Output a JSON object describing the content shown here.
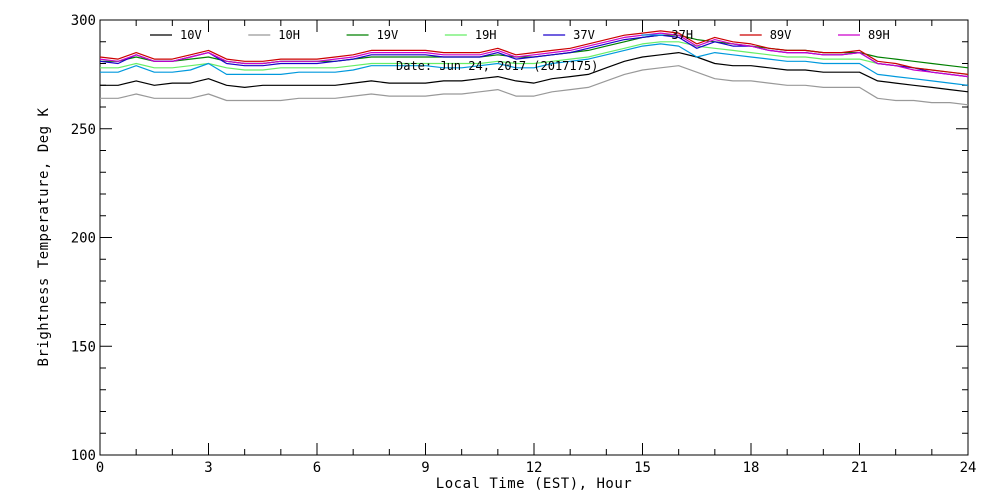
{
  "chart_data": {
    "type": "line",
    "annotation": "Date: Jun 24, 2017 (2017175)",
    "xlabel": "Local Time (EST), Hour",
    "ylabel": "Brightness Temperature, Deg K",
    "xlim": [
      0,
      24
    ],
    "ylim": [
      100,
      300
    ],
    "x_ticks": [
      0,
      3,
      6,
      9,
      12,
      15,
      18,
      21,
      24
    ],
    "y_ticks": [
      100,
      150,
      200,
      250,
      300
    ],
    "x_minor_step": 1,
    "y_minor_step": 10,
    "grid": false,
    "legend_position": "top",
    "x": [
      0,
      0.5,
      1,
      1.5,
      2,
      2.5,
      3,
      3.5,
      4,
      4.5,
      5,
      5.5,
      6,
      6.5,
      7,
      7.5,
      8,
      8.5,
      9,
      9.5,
      10,
      10.5,
      11,
      11.5,
      12,
      12.5,
      13,
      13.5,
      14,
      14.5,
      15,
      15.5,
      16,
      16.5,
      17,
      17.5,
      18,
      18.5,
      19,
      19.5,
      20,
      20.5,
      21,
      21.5,
      22,
      22.5,
      23,
      23.5,
      24
    ],
    "series": [
      {
        "name": "10V",
        "color": "#000000",
        "values": [
          270,
          270,
          272,
          270,
          271,
          271,
          273,
          270,
          269,
          270,
          270,
          270,
          270,
          270,
          271,
          272,
          271,
          271,
          271,
          272,
          272,
          273,
          274,
          272,
          271,
          273,
          274,
          275,
          278,
          281,
          283,
          284,
          285,
          283,
          280,
          279,
          279,
          278,
          277,
          277,
          276,
          276,
          276,
          272,
          271,
          270,
          269,
          268,
          267
        ]
      },
      {
        "name": "10H",
        "color": "#999999",
        "values": [
          264,
          264,
          266,
          264,
          264,
          264,
          266,
          263,
          263,
          263,
          263,
          264,
          264,
          264,
          265,
          266,
          265,
          265,
          265,
          266,
          266,
          267,
          268,
          265,
          265,
          267,
          268,
          269,
          272,
          275,
          277,
          278,
          279,
          276,
          273,
          272,
          272,
          271,
          270,
          270,
          269,
          269,
          269,
          264,
          263,
          263,
          262,
          262,
          261
        ]
      },
      {
        "name": "19V",
        "color": "#008000",
        "values": [
          281,
          281,
          283,
          281,
          281,
          282,
          283,
          281,
          280,
          280,
          281,
          281,
          281,
          281,
          282,
          283,
          283,
          283,
          283,
          283,
          283,
          283,
          284,
          283,
          283,
          284,
          285,
          286,
          288,
          290,
          292,
          293,
          293,
          291,
          290,
          289,
          288,
          287,
          286,
          286,
          285,
          285,
          285,
          283,
          282,
          281,
          280,
          279,
          278
        ]
      },
      {
        "name": "19H",
        "color": "#66ee66",
        "values": [
          278,
          278,
          280,
          278,
          278,
          279,
          280,
          278,
          277,
          277,
          278,
          278,
          278,
          278,
          279,
          280,
          280,
          280,
          280,
          280,
          280,
          280,
          281,
          280,
          280,
          281,
          282,
          283,
          285,
          287,
          289,
          290,
          290,
          288,
          287,
          286,
          285,
          284,
          283,
          283,
          282,
          282,
          282,
          280,
          279,
          278,
          277,
          276,
          275
        ]
      },
      {
        "name": "37V",
        "color": "#1a00cc",
        "values": [
          281,
          280,
          284,
          281,
          281,
          283,
          285,
          280,
          279,
          279,
          280,
          280,
          280,
          281,
          282,
          284,
          284,
          284,
          284,
          283,
          283,
          283,
          285,
          282,
          283,
          284,
          285,
          287,
          289,
          291,
          292,
          293,
          292,
          287,
          290,
          288,
          288,
          286,
          285,
          285,
          284,
          284,
          285,
          280,
          279,
          278,
          276,
          275,
          274
        ]
      },
      {
        "name": "37H",
        "color": "#0099dd",
        "values": [
          276,
          276,
          279,
          276,
          276,
          277,
          280,
          275,
          275,
          275,
          275,
          276,
          276,
          276,
          277,
          279,
          279,
          279,
          279,
          278,
          278,
          279,
          280,
          278,
          278,
          280,
          281,
          282,
          284,
          286,
          288,
          289,
          288,
          283,
          285,
          284,
          283,
          282,
          281,
          281,
          280,
          280,
          280,
          275,
          274,
          273,
          272,
          271,
          270
        ]
      },
      {
        "name": "89V",
        "color": "#cc0000",
        "values": [
          283,
          282,
          285,
          282,
          282,
          284,
          286,
          282,
          281,
          281,
          282,
          282,
          282,
          283,
          284,
          286,
          286,
          286,
          286,
          285,
          285,
          285,
          287,
          284,
          285,
          286,
          287,
          289,
          291,
          293,
          294,
          295,
          294,
          289,
          292,
          290,
          289,
          287,
          286,
          286,
          285,
          285,
          286,
          281,
          280,
          278,
          277,
          276,
          275
        ]
      },
      {
        "name": "89H",
        "color": "#cc00cc",
        "values": [
          282,
          281,
          284,
          281,
          281,
          283,
          285,
          281,
          280,
          280,
          281,
          281,
          281,
          282,
          283,
          285,
          285,
          285,
          285,
          284,
          284,
          284,
          286,
          283,
          284,
          285,
          286,
          288,
          290,
          292,
          293,
          294,
          293,
          288,
          291,
          289,
          288,
          286,
          285,
          285,
          284,
          284,
          285,
          280,
          279,
          277,
          276,
          275,
          274
        ]
      }
    ]
  }
}
